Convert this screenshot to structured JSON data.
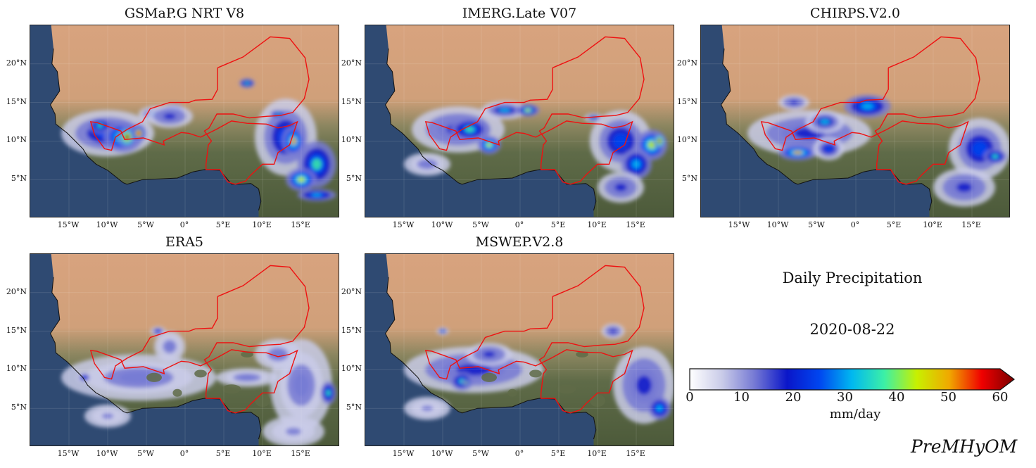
{
  "panels": [
    {
      "id": "gsmap",
      "title": "GSMaP.G NRT V8"
    },
    {
      "id": "imerg",
      "title": "IMERG.Late V07"
    },
    {
      "id": "chirps",
      "title": "CHIRPS.V2.0"
    },
    {
      "id": "era5",
      "title": "ERA5"
    },
    {
      "id": "mswep",
      "title": "MSWEP.V2.8"
    }
  ],
  "lat_ticks": [
    "20°N",
    "15°N",
    "10°N",
    "5°N"
  ],
  "lon_ticks": [
    "15°W",
    "10°W",
    "5°W",
    "0°",
    "5°E",
    "10°E",
    "15°E"
  ],
  "legend": {
    "title": "Daily Precipitation",
    "date": "2020-08-22",
    "units": "mm/day",
    "ticks": [
      "0",
      "10",
      "20",
      "30",
      "40",
      "50",
      "60"
    ],
    "extend": "max"
  },
  "signature": "PreMHyOM",
  "colors": {
    "ocean": "#2f4a72",
    "desert": "#d9a57e",
    "vegetation": "#5f6b48",
    "boundary": "#ee1111",
    "colormap": [
      "#ffffff",
      "#c9cbe8",
      "#7579d4",
      "#0a16c9",
      "#0046f0",
      "#00b8f0",
      "#3cf0a6",
      "#c8f000",
      "#f0a800",
      "#f00000",
      "#7a0000"
    ]
  }
}
